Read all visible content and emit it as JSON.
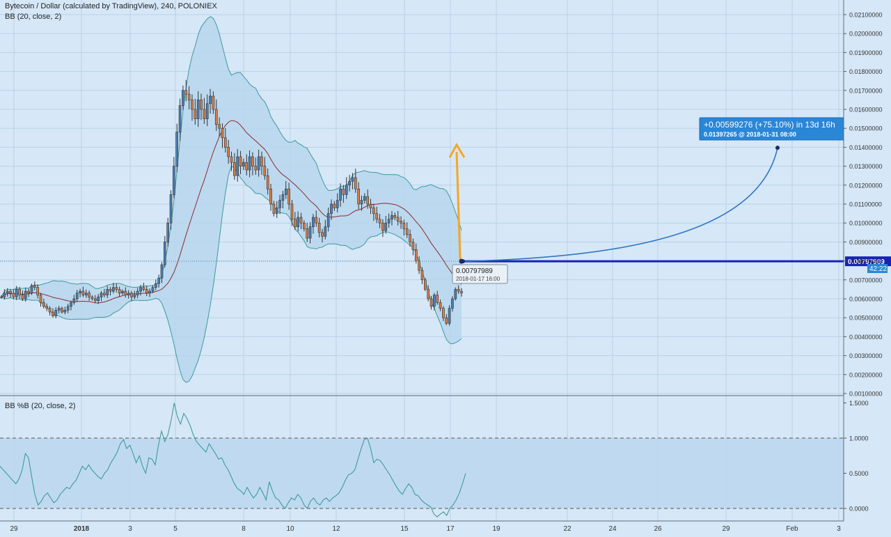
{
  "header": {
    "title": "Bytecoin / Dollar (calculated by TradingView), 240, POLONIEX",
    "indicator_main": "BB (20, close, 2)",
    "indicator_sub": "BB %B (20, close, 2)"
  },
  "colors": {
    "background": "#d6e7f7",
    "grid": "#b9d2e8",
    "up_candle": "#4a7fb5",
    "down_candle": "#d77c45",
    "bands": "#3f9a9a",
    "bands_fill": "#b5d6ec",
    "basis": "#8b2c2c",
    "price_line": "#1722b8",
    "projection": "#2e77c3",
    "arrow": "#f5a623",
    "axis_text": "#333333"
  },
  "chart_data": [
    {
      "type": "candlestick",
      "pane": "price",
      "ylim": [
        0.0005,
        0.0213
      ],
      "y_ticks": [
        "0.02100000",
        "0.02000000",
        "0.01900000",
        "0.01800000",
        "0.01700000",
        "0.01600000",
        "0.01500000",
        "0.01400000",
        "0.01300000",
        "0.01200000",
        "0.01100000",
        "0.01000000",
        "0.00900000",
        "0.00800000",
        "0.00700000",
        "0.00600000",
        "0.00500000",
        "0.00400000",
        "0.00300000",
        "0.00200000",
        "0.00100000"
      ],
      "y_tick_values": [
        0.021,
        0.02,
        0.019,
        0.018,
        0.017,
        0.016,
        0.015,
        0.014,
        0.013,
        0.012,
        0.011,
        0.01,
        0.009,
        0.008,
        0.007,
        0.006,
        0.005,
        0.004,
        0.003,
        0.002,
        0.001
      ],
      "x_ticks": [
        "29",
        "2018",
        "3",
        "5",
        "8",
        "10",
        "12",
        "15",
        "17",
        "19",
        "22",
        "24",
        "26",
        "29",
        "Feb",
        "3"
      ],
      "close": [
        0.0061,
        0.0063,
        0.0064,
        0.0063,
        0.0061,
        0.0065,
        0.0062,
        0.006,
        0.0064,
        0.0063,
        0.0067,
        0.0066,
        0.0062,
        0.0058,
        0.0056,
        0.0055,
        0.0053,
        0.0051,
        0.0054,
        0.0055,
        0.0053,
        0.0054,
        0.0056,
        0.0058,
        0.006,
        0.0063,
        0.0064,
        0.0062,
        0.0063,
        0.0061,
        0.006,
        0.0059,
        0.0061,
        0.0063,
        0.0062,
        0.0065,
        0.0064,
        0.0066,
        0.0065,
        0.0063,
        0.0064,
        0.0062,
        0.0063,
        0.0061,
        0.0062,
        0.0064,
        0.0066,
        0.0065,
        0.0063,
        0.0064,
        0.0066,
        0.0068,
        0.0071,
        0.0078,
        0.009,
        0.01,
        0.0115,
        0.013,
        0.0148,
        0.0162,
        0.017,
        0.0168,
        0.0165,
        0.016,
        0.0155,
        0.0165,
        0.016,
        0.0155,
        0.0163,
        0.0167,
        0.016,
        0.0152,
        0.015,
        0.0145,
        0.014,
        0.0135,
        0.0132,
        0.0125,
        0.0135,
        0.013,
        0.0132,
        0.0128,
        0.0135,
        0.013,
        0.0128,
        0.0135,
        0.013,
        0.0125,
        0.0118,
        0.011,
        0.0105,
        0.0108,
        0.0112,
        0.0115,
        0.0118,
        0.011,
        0.0102,
        0.0098,
        0.0103,
        0.01,
        0.0097,
        0.0092,
        0.0098,
        0.0103,
        0.01,
        0.0095,
        0.0093,
        0.0098,
        0.0105,
        0.011,
        0.0108,
        0.0112,
        0.0118,
        0.0115,
        0.012,
        0.0122,
        0.0124,
        0.0118,
        0.011,
        0.0112,
        0.0114,
        0.011,
        0.0108,
        0.0105,
        0.0102,
        0.01,
        0.0096,
        0.01,
        0.0102,
        0.0104,
        0.0103,
        0.0101,
        0.01,
        0.0097,
        0.0094,
        0.009,
        0.0086,
        0.008,
        0.0075,
        0.007,
        0.0065,
        0.006,
        0.0056,
        0.0062,
        0.0058,
        0.0055,
        0.005,
        0.0047,
        0.0055,
        0.006,
        0.0065,
        0.0064,
        0.0063
      ],
      "price_label": "0.00797989",
      "countdown_label": "42:22",
      "tooltip": {
        "price": "0.00797989",
        "date": "2018-01-17 16:00"
      },
      "projection": {
        "change": "+0.00599276 (+75.10%) in 13d 16h",
        "target": "0.01397265",
        "target_date": "2018-01-31  08:00",
        "target_value": 0.01397265,
        "start_value": 0.00797989
      }
    },
    {
      "type": "line",
      "pane": "percent_b",
      "ylim": [
        -0.1,
        1.56
      ],
      "y_ticks": [
        "1.5000",
        "1.0000",
        "0.5000",
        "0.0000"
      ],
      "y_tick_values": [
        1.5,
        1.0,
        0.5,
        0.0
      ],
      "reference_lines": [
        1.0,
        0.0
      ],
      "values": [
        0.6,
        0.55,
        0.5,
        0.45,
        0.4,
        0.35,
        0.42,
        0.55,
        0.78,
        0.72,
        0.45,
        0.2,
        0.05,
        0.1,
        0.18,
        0.22,
        0.15,
        0.08,
        0.12,
        0.2,
        0.25,
        0.3,
        0.28,
        0.35,
        0.4,
        0.5,
        0.6,
        0.55,
        0.62,
        0.55,
        0.5,
        0.45,
        0.42,
        0.5,
        0.55,
        0.65,
        0.72,
        0.8,
        0.92,
        0.98,
        0.85,
        0.9,
        0.78,
        0.65,
        0.75,
        0.6,
        0.5,
        0.72,
        0.7,
        0.62,
        0.9,
        1.1,
        0.95,
        1.05,
        1.25,
        1.5,
        1.3,
        1.2,
        1.35,
        1.28,
        1.18,
        1.05,
        0.95,
        0.9,
        0.85,
        0.8,
        0.92,
        0.85,
        0.78,
        0.7,
        0.72,
        0.62,
        0.55,
        0.45,
        0.35,
        0.28,
        0.25,
        0.2,
        0.3,
        0.22,
        0.15,
        0.2,
        0.3,
        0.22,
        0.12,
        0.38,
        0.25,
        0.15,
        0.12,
        0.05,
        0.0,
        0.08,
        0.15,
        0.12,
        0.2,
        0.15,
        0.05,
        0.0,
        0.1,
        0.15,
        0.08,
        0.05,
        0.12,
        0.15,
        0.1,
        0.15,
        0.18,
        0.22,
        0.3,
        0.4,
        0.48,
        0.5,
        0.55,
        0.7,
        0.85,
        0.98,
        1.0,
        0.85,
        0.65,
        0.7,
        0.68,
        0.62,
        0.55,
        0.48,
        0.4,
        0.32,
        0.25,
        0.2,
        0.28,
        0.35,
        0.3,
        0.2,
        0.18,
        0.12,
        0.08,
        0.05,
        0.02,
        -0.08,
        -0.12,
        -0.08,
        -0.05,
        -0.1,
        0.0,
        0.05,
        0.12,
        0.22,
        0.35,
        0.5
      ]
    }
  ]
}
